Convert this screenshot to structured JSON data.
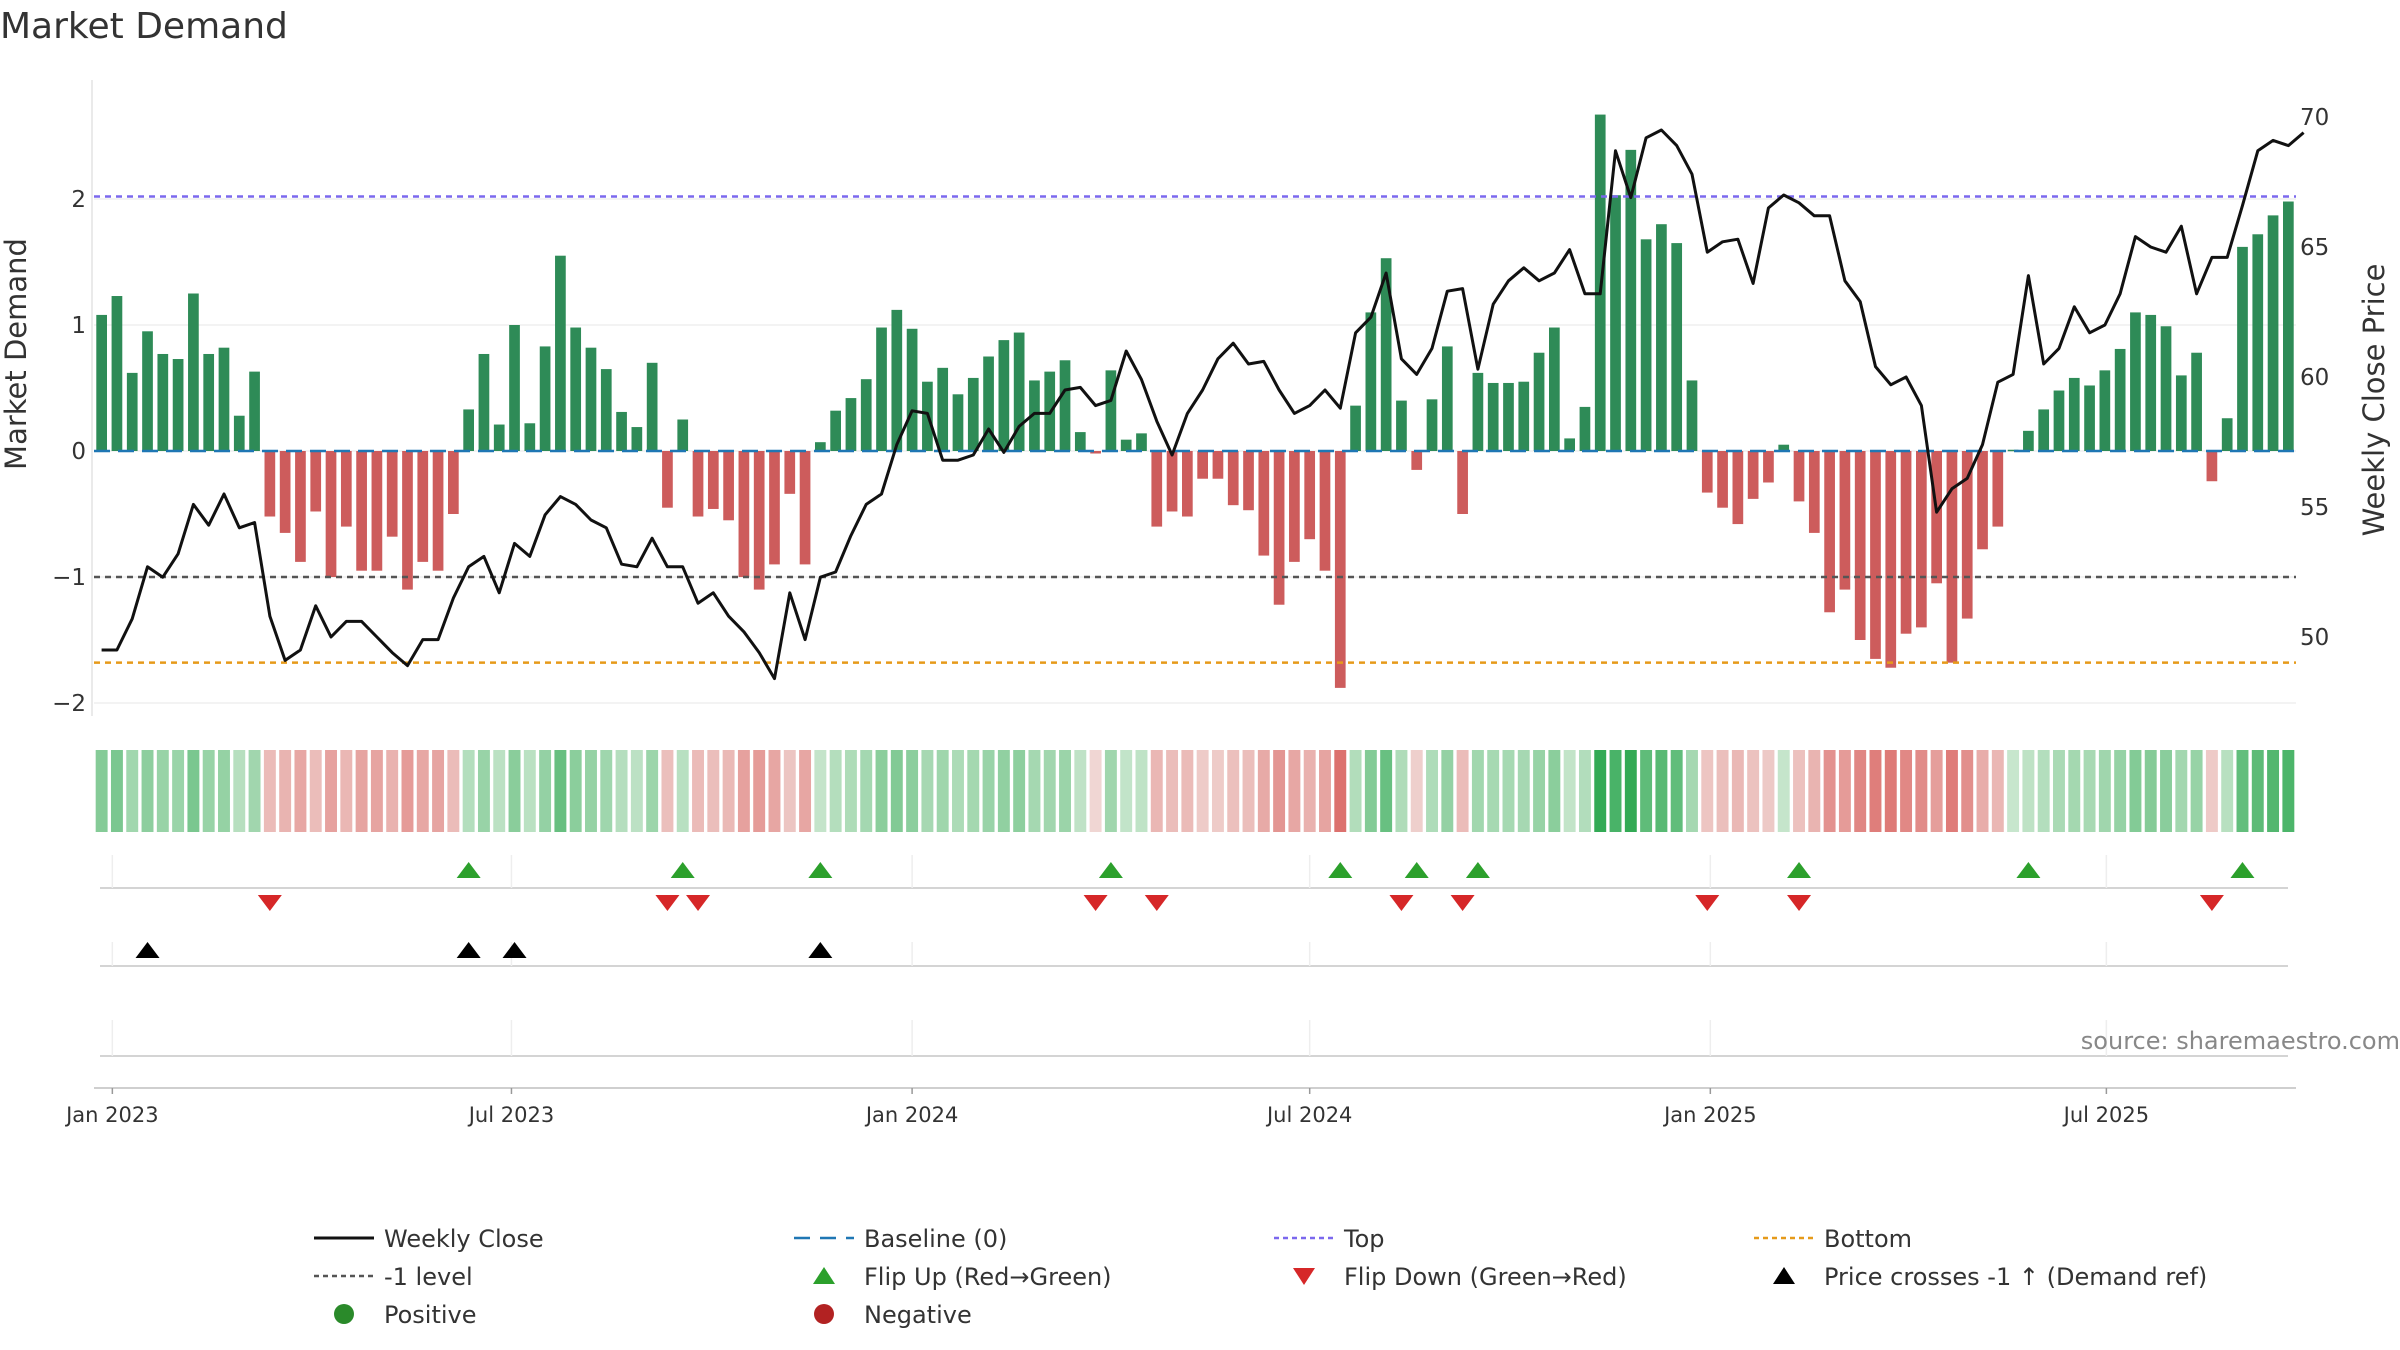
{
  "chart_data": {
    "type": "bar",
    "title": "Market Demand",
    "ylabel": "Market Demand",
    "y2label": "Weekly Close Price",
    "ylim": [
      -2.1,
      2.85
    ],
    "y2lim": [
      47.5,
      71
    ],
    "yticks": [
      "2",
      "1",
      "0",
      "−1",
      "−2"
    ],
    "yticks_values": [
      2,
      1,
      0,
      -1,
      -2
    ],
    "y2ticks": [
      "70",
      "65",
      "60",
      "55",
      "50"
    ],
    "y2ticks_values": [
      70,
      65,
      60,
      55,
      50
    ],
    "xticks": [
      "Jan 2023",
      "Jul 2023",
      "Jan 2024",
      "Jul 2024",
      "Jan 2025",
      "Jul 2025"
    ],
    "xticks_week_index": [
      1.2,
      27.3,
      53.5,
      79.5,
      105.7,
      131.6
    ],
    "reference_lines": {
      "top": 2.02,
      "minus_one": -1.0,
      "bottom": -1.68,
      "baseline": 0
    },
    "colors": {
      "positive": "#2e8b57",
      "negative": "#cd5c5c",
      "close": "#111111",
      "top": "#7b68ee",
      "minus_one": "#555555",
      "bottom": "#e69a1a",
      "baseline": "#1f77b4",
      "flip_up": "#2ca02c",
      "flip_down": "#d62728",
      "cross": "#000000"
    },
    "series": [
      {
        "name": "Market Demand",
        "type": "bar",
        "values": [
          1.08,
          1.23,
          0.62,
          0.95,
          0.77,
          0.73,
          1.25,
          0.77,
          0.82,
          0.28,
          0.63,
          -0.52,
          -0.65,
          -0.88,
          -0.48,
          -1.0,
          -0.6,
          -0.95,
          -0.95,
          -0.68,
          -1.1,
          -0.88,
          -0.95,
          -0.5,
          0.33,
          0.77,
          0.21,
          1.0,
          0.22,
          0.83,
          1.55,
          0.98,
          0.82,
          0.65,
          0.31,
          0.19,
          0.7,
          -0.45,
          0.25,
          -0.52,
          -0.46,
          -0.55,
          -1.0,
          -1.1,
          -0.9,
          -0.34,
          -0.9,
          0.07,
          0.32,
          0.42,
          0.57,
          0.98,
          1.12,
          0.97,
          0.55,
          0.66,
          0.45,
          0.58,
          0.75,
          0.88,
          0.94,
          0.56,
          0.63,
          0.72,
          0.15,
          -0.02,
          0.64,
          0.09,
          0.14,
          -0.6,
          -0.48,
          -0.52,
          -0.22,
          -0.22,
          -0.43,
          -0.47,
          -0.83,
          -1.22,
          -0.88,
          -0.7,
          -0.95,
          -1.88,
          0.36,
          1.1,
          1.53,
          0.4,
          -0.15,
          0.41,
          0.83,
          -0.5,
          0.62,
          0.54,
          0.54,
          0.55,
          0.78,
          0.98,
          0.1,
          0.35,
          2.67,
          2.03,
          2.39,
          1.68,
          1.8,
          1.65,
          0.56,
          -0.33,
          -0.45,
          -0.58,
          -0.38,
          -0.25,
          0.05,
          -0.4,
          -0.65,
          -1.28,
          -1.1,
          -1.5,
          -1.65,
          -1.72,
          -1.45,
          -1.4,
          -1.05,
          -1.68,
          -1.33,
          -0.78,
          -0.6,
          0.01,
          0.16,
          0.33,
          0.48,
          0.58,
          0.52,
          0.64,
          0.81,
          1.1,
          1.08,
          0.99,
          0.6,
          0.78,
          -0.24,
          0.26,
          1.62,
          1.72,
          1.87,
          1.98
        ]
      },
      {
        "name": "Weekly Close",
        "type": "line",
        "axis": "right",
        "values": [
          49.5,
          49.5,
          50.7,
          52.7,
          52.3,
          53.2,
          55.1,
          54.3,
          55.5,
          54.2,
          54.4,
          50.8,
          49.1,
          49.5,
          51.2,
          50.0,
          50.6,
          50.6,
          50.0,
          49.4,
          48.9,
          49.9,
          49.9,
          51.5,
          52.7,
          53.1,
          51.7,
          53.6,
          53.1,
          54.7,
          55.4,
          55.1,
          54.5,
          54.2,
          52.8,
          52.7,
          53.8,
          52.7,
          52.7,
          51.3,
          51.7,
          50.8,
          50.2,
          49.4,
          48.4,
          51.7,
          49.9,
          52.3,
          52.5,
          53.9,
          55.1,
          55.5,
          57.4,
          58.7,
          58.6,
          56.8,
          56.8,
          57.0,
          58.0,
          57.1,
          58.1,
          58.6,
          58.6,
          59.5,
          59.6,
          58.9,
          59.1,
          61.0,
          59.9,
          58.3,
          57.0,
          58.6,
          59.5,
          60.7,
          61.3,
          60.5,
          60.6,
          59.5,
          58.6,
          58.9,
          59.5,
          58.8,
          61.7,
          62.3,
          64.0,
          60.7,
          60.1,
          61.1,
          63.3,
          63.4,
          60.3,
          62.8,
          63.7,
          64.2,
          63.7,
          64.0,
          64.9,
          63.2,
          63.2,
          68.7,
          66.9,
          69.2,
          69.5,
          68.9,
          67.8,
          64.8,
          65.2,
          65.3,
          63.6,
          66.5,
          67.0,
          66.7,
          66.2,
          66.2,
          63.7,
          62.9,
          60.4,
          59.7,
          60.0,
          58.9,
          54.8,
          55.7,
          56.1,
          57.4,
          59.8,
          60.1,
          63.9,
          60.5,
          61.1,
          62.7,
          61.7,
          62.0,
          63.2,
          65.4,
          65.0,
          64.8,
          65.8,
          63.2,
          64.6,
          64.6,
          66.6,
          68.7,
          69.1,
          68.9,
          69.4
        ]
      }
    ],
    "flip_up_weeks": [
      24,
      38,
      47,
      66,
      81,
      86,
      90,
      111,
      126,
      140
    ],
    "flip_down_weeks": [
      11,
      37,
      39,
      65,
      69,
      85,
      89,
      105,
      111,
      138
    ],
    "price_cross_weeks": [
      3,
      24,
      27,
      47
    ]
  },
  "legend": [
    {
      "label": "Weekly Close",
      "marker": "line"
    },
    {
      "label": "Baseline (0)",
      "marker": "dash"
    },
    {
      "label": "Top",
      "marker": "dotted-top"
    },
    {
      "label": "Bottom",
      "marker": "dotted-bottom"
    },
    {
      "label": "-1 level",
      "marker": "dotted-gray"
    },
    {
      "label": "Flip Up (Red→Green)",
      "marker": "triangle-up"
    },
    {
      "label": "Flip Down (Green→Red)",
      "marker": "triangle-down"
    },
    {
      "label": "Price crosses -1 ↑ (Demand ref)",
      "marker": "triangle-black"
    },
    {
      "label": "Positive",
      "marker": "dot-green"
    },
    {
      "label": "Negative",
      "marker": "dot-red"
    }
  ],
  "source": "source: sharemaestro.com"
}
